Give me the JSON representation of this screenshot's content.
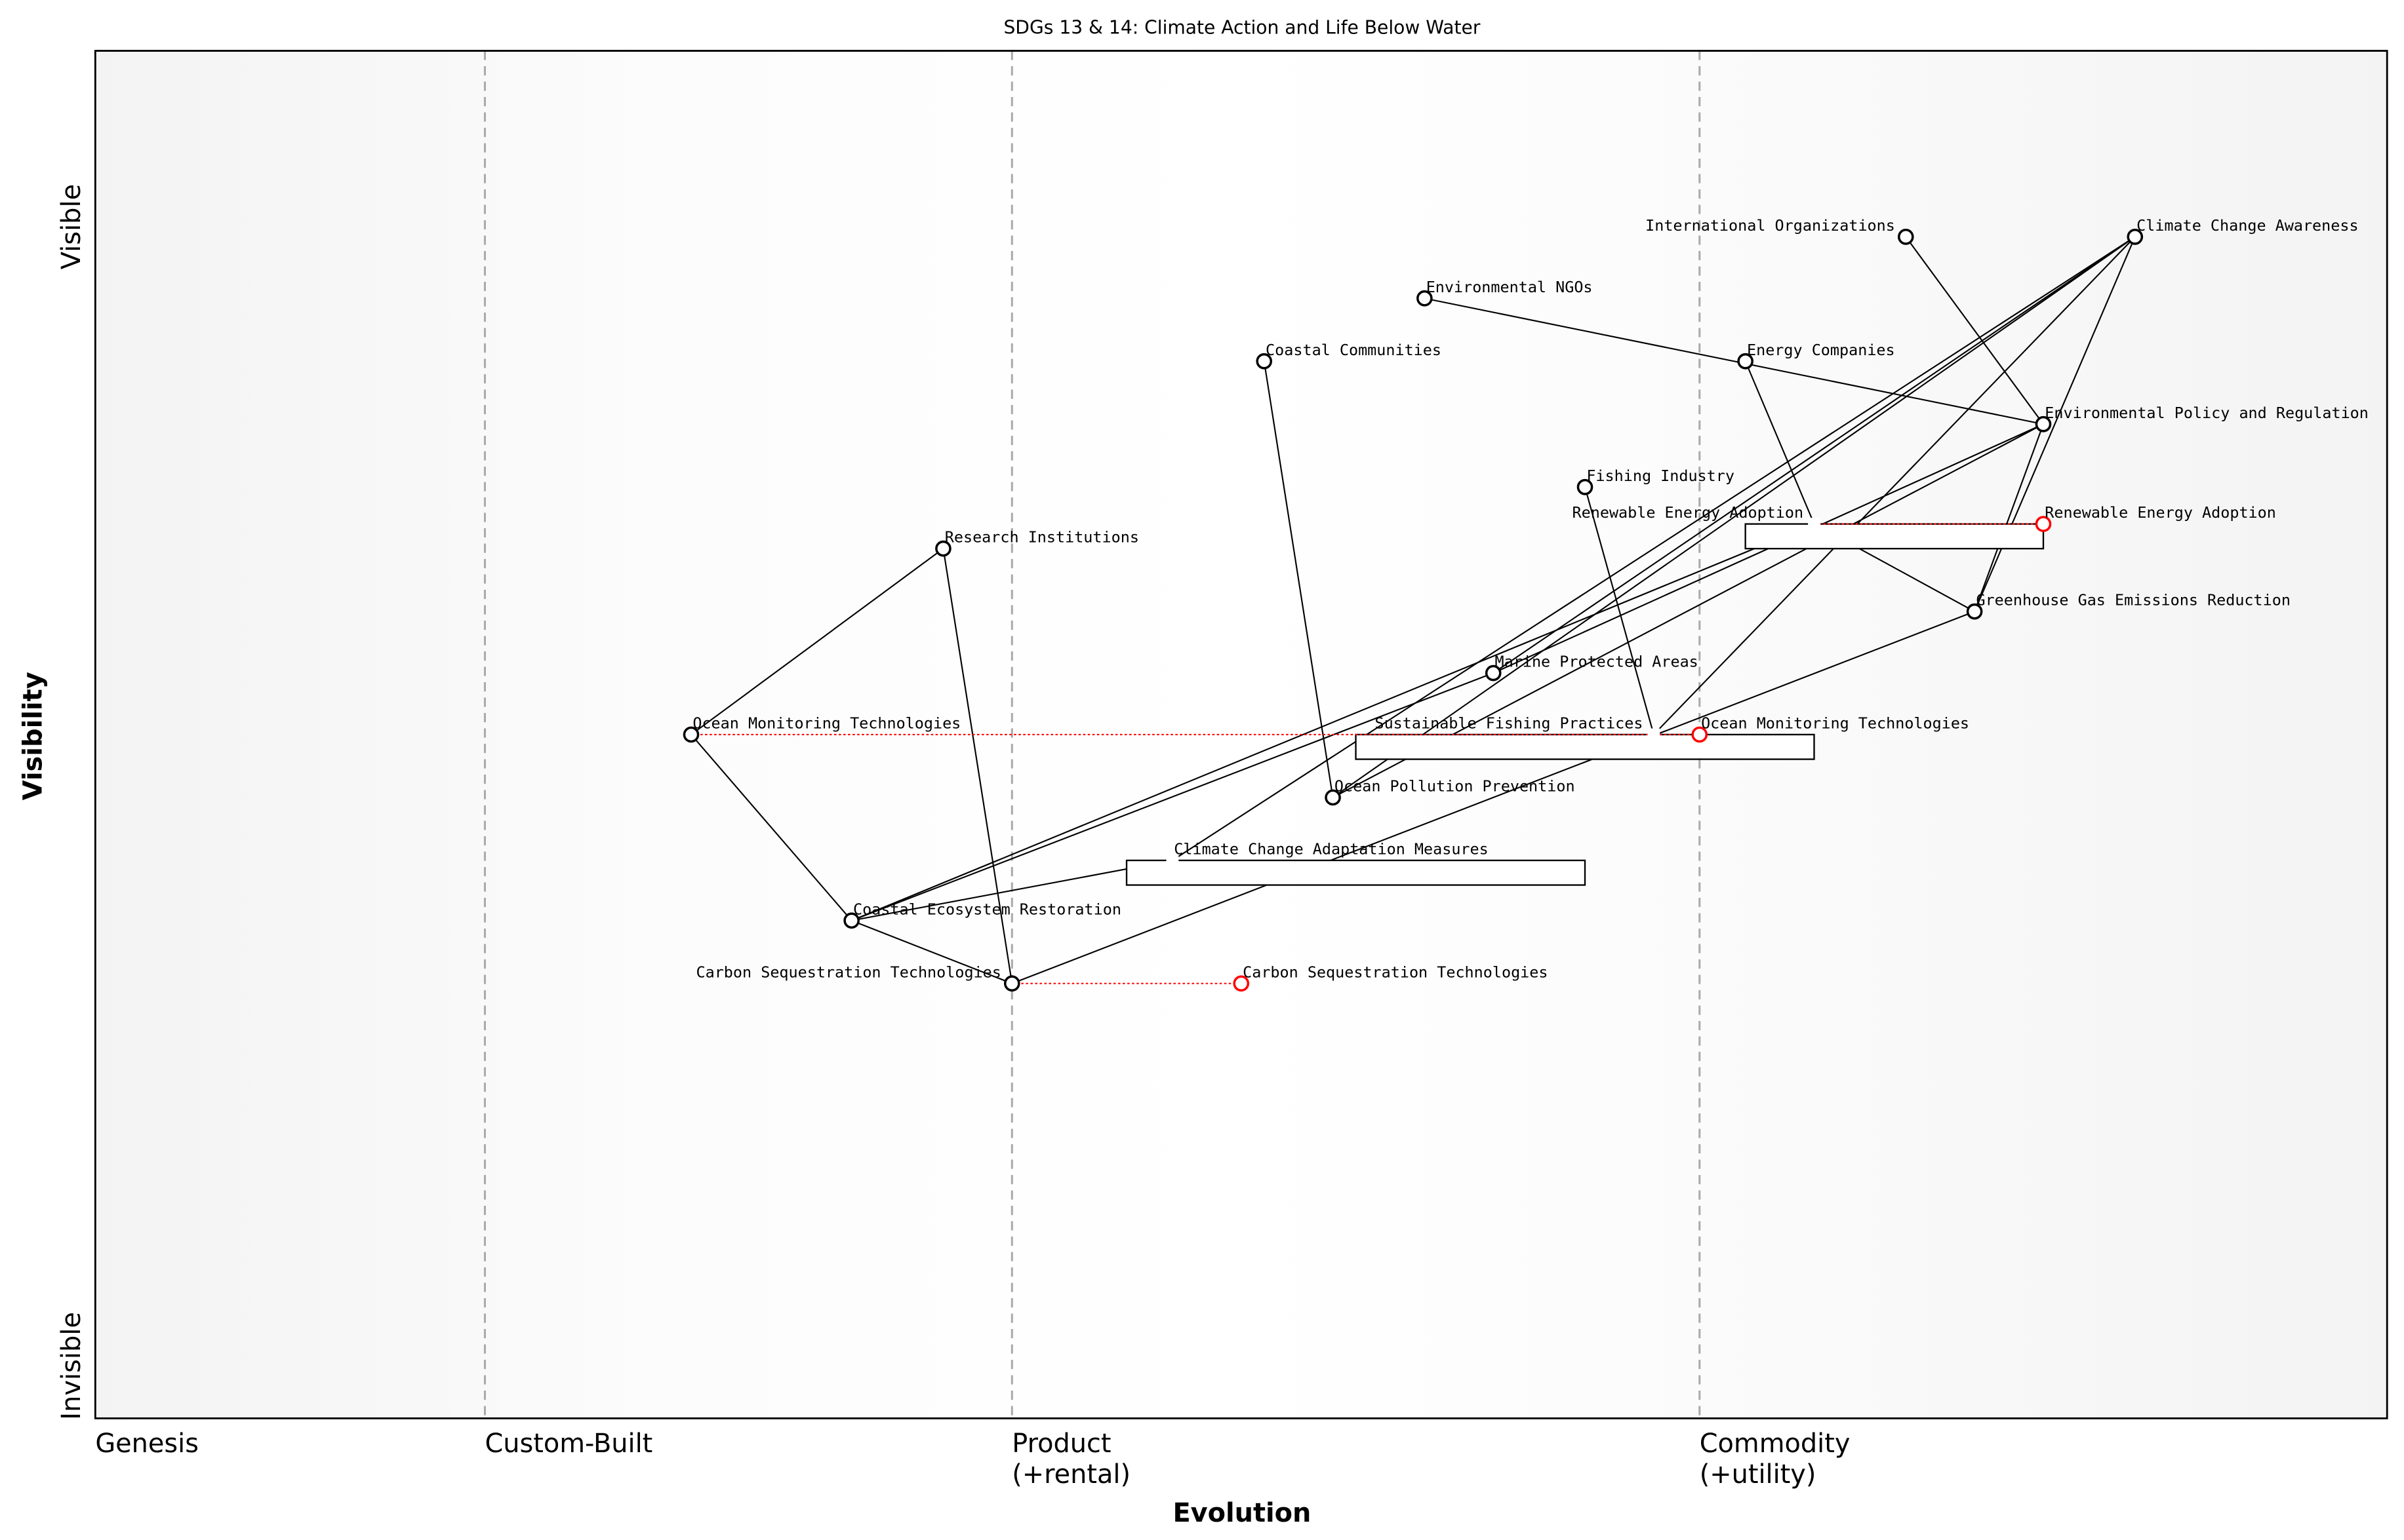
{
  "title": "SDGs 13 & 14: Climate Action and Life Below Water",
  "axes": {
    "x_label": "Evolution",
    "y_label": "Visibility",
    "y_top": "Visible",
    "y_bottom": "Invisible",
    "stages": [
      {
        "label": "Genesis",
        "evolution": 0.0
      },
      {
        "label": "Custom-Built",
        "evolution": 0.17
      },
      {
        "label": "Product\n(+rental)",
        "evolution": 0.4
      },
      {
        "label": "Commodity\n(+utility)",
        "evolution": 0.7
      }
    ]
  },
  "colors": {
    "evolve": "#ff0000",
    "node": "#000000",
    "grid": "#aaaaaa"
  },
  "components": [
    {
      "id": "io",
      "name": "International Organizations",
      "evolution": 0.79,
      "visibility": 0.864
    },
    {
      "id": "cca",
      "name": "Climate Change Awareness",
      "evolution": 0.89,
      "visibility": 0.864
    },
    {
      "id": "ngo",
      "name": "Environmental NGOs",
      "evolution": 0.58,
      "visibility": 0.819
    },
    {
      "id": "cc",
      "name": "Coastal Communities",
      "evolution": 0.51,
      "visibility": 0.773
    },
    {
      "id": "ec",
      "name": "Energy Companies",
      "evolution": 0.72,
      "visibility": 0.773
    },
    {
      "id": "epr",
      "name": "Environmental Policy and Regulation",
      "evolution": 0.85,
      "visibility": 0.727
    },
    {
      "id": "fi",
      "name": "Fishing Industry",
      "evolution": 0.65,
      "visibility": 0.681
    },
    {
      "id": "rea",
      "name": "Renewable Energy Adoption",
      "evolution": 0.75,
      "visibility": 0.654,
      "pipeline": [
        0.72,
        0.85
      ],
      "hidden": true
    },
    {
      "id": "ri",
      "name": "Research Institutions",
      "evolution": 0.37,
      "visibility": 0.636
    },
    {
      "id": "ghg",
      "name": "Greenhouse Gas Emissions Reduction",
      "evolution": 0.82,
      "visibility": 0.59
    },
    {
      "id": "mpa",
      "name": "Marine Protected Areas",
      "evolution": 0.61,
      "visibility": 0.545
    },
    {
      "id": "omt",
      "name": "Ocean Monitoring Technologies",
      "evolution": 0.26,
      "visibility": 0.5
    },
    {
      "id": "sfp",
      "name": "Sustainable Fishing Practices",
      "evolution": 0.68,
      "visibility": 0.5,
      "pipeline": [
        0.55,
        0.75
      ],
      "hidden": true
    },
    {
      "id": "opp",
      "name": "Ocean Pollution Prevention",
      "evolution": 0.54,
      "visibility": 0.454
    },
    {
      "id": "ccam",
      "name": "Climate Change Adaptation Measures",
      "evolution": 0.47,
      "visibility": 0.408,
      "pipeline": [
        0.45,
        0.65
      ],
      "hidden": true
    },
    {
      "id": "cer",
      "name": "Coastal Ecosystem Restoration",
      "evolution": 0.33,
      "visibility": 0.364
    },
    {
      "id": "cst",
      "name": "Carbon Sequestration Technologies",
      "evolution": 0.4,
      "visibility": 0.318
    }
  ],
  "evolutions": [
    {
      "from": "rea",
      "name": "Renewable Energy Adoption",
      "to_evolution": 0.85
    },
    {
      "from": "omt",
      "name": "Ocean Monitoring Technologies",
      "to_evolution": 0.7
    },
    {
      "from": "cst",
      "name": "Carbon Sequestration Technologies",
      "to_evolution": 0.5
    }
  ],
  "links": [
    [
      "io",
      "epr"
    ],
    [
      "ngo",
      "epr"
    ],
    [
      "cc",
      "opp"
    ],
    [
      "ec",
      "rea"
    ],
    [
      "rea",
      "ghg"
    ],
    [
      "fi",
      "sfp"
    ],
    [
      "ri",
      "omt"
    ],
    [
      "ri",
      "cst"
    ],
    [
      "omt",
      "cer"
    ],
    [
      "cer",
      "cst"
    ],
    [
      "cer",
      "ccam"
    ],
    [
      "cer",
      "mpa"
    ],
    [
      "mpa",
      "cca"
    ],
    [
      "opp",
      "cca"
    ],
    [
      "opp",
      "epr"
    ],
    [
      "ccam",
      "cca"
    ],
    [
      "sfp",
      "cca"
    ],
    [
      "cer",
      "rea"
    ],
    [
      "cst",
      "ghg"
    ],
    [
      "cca",
      "ghg"
    ],
    [
      "epr",
      "ghg"
    ],
    [
      "mpa",
      "epr"
    ]
  ]
}
